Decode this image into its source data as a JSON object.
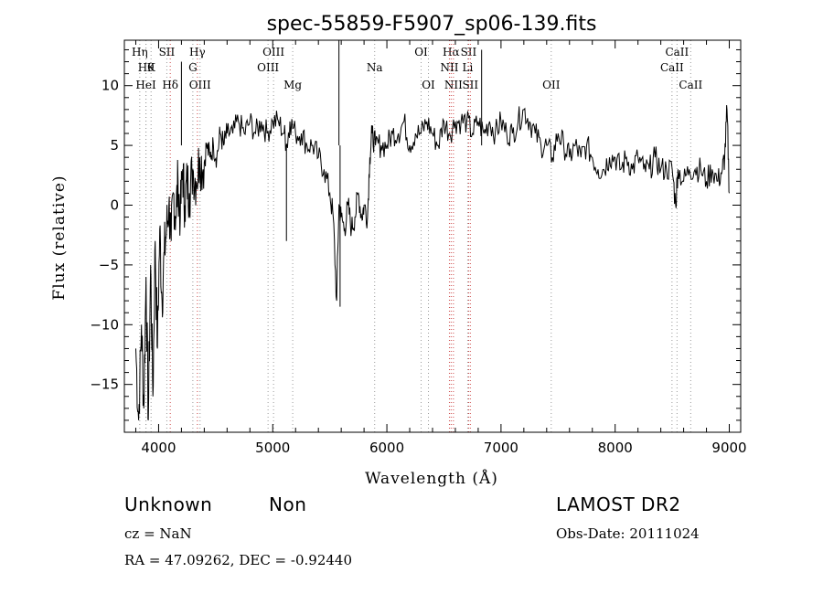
{
  "chart_data": {
    "type": "line",
    "title": "spec-55859-F5907_sp06-139.fits",
    "xlabel": "Wavelength (Å)",
    "ylabel": "Flux (relative)",
    "xlim": [
      3700,
      9100
    ],
    "ylim": [
      -19,
      13.8
    ],
    "x_ticks": [
      4000,
      5000,
      6000,
      7000,
      8000,
      9000
    ],
    "y_ticks": [
      -15,
      -10,
      -5,
      0,
      5,
      10
    ],
    "grid": false,
    "legend": "none",
    "series": [
      {
        "x": [
          3800,
          3825,
          3850,
          3870,
          3890,
          3910,
          3930,
          3950,
          3970,
          3990,
          4010,
          4030,
          4050,
          4070,
          4090,
          4110,
          4130,
          4150,
          4170,
          4190,
          4210,
          4230,
          4250,
          4270,
          4300,
          4330,
          4360,
          4390,
          4420,
          4450,
          4480,
          4510,
          4540,
          4570,
          4600,
          4650,
          4700,
          4750,
          4800,
          4850,
          4900,
          4950,
          5000,
          5050,
          5100,
          5125,
          5150,
          5200,
          5250,
          5300,
          5350,
          5400,
          5450,
          5500,
          5530,
          5560,
          5580,
          5600,
          5630,
          5660,
          5690,
          5720,
          5750,
          5780,
          5800,
          5830,
          5850,
          5870,
          5900,
          5950,
          6000,
          6050,
          6100,
          6150,
          6200,
          6250,
          6300,
          6350,
          6400,
          6450,
          6500,
          6550,
          6600,
          6650,
          6700,
          6750,
          6800,
          6850,
          6900,
          6950,
          7000,
          7050,
          7100,
          7150,
          7200,
          7250,
          7300,
          7350,
          7400,
          7450,
          7500,
          7550,
          7600,
          7650,
          7700,
          7750,
          7800,
          7850,
          7900,
          7950,
          8000,
          8050,
          8100,
          8150,
          8200,
          8250,
          8300,
          8350,
          8400,
          8450,
          8500,
          8530,
          8550,
          8600,
          8650,
          8700,
          8750,
          8800,
          8850,
          8900,
          8940,
          8960,
          8980,
          9000
        ],
        "y": [
          -12,
          -18,
          -10,
          -17,
          -6,
          -18,
          -5,
          -16,
          -3,
          -12,
          -2,
          -8,
          -4,
          -2,
          0,
          -3,
          1,
          -1,
          2,
          -1,
          3,
          0,
          2,
          1,
          3,
          2,
          4,
          3,
          5,
          4,
          5,
          4,
          6,
          5,
          6,
          6,
          7,
          6,
          7,
          6,
          7,
          6,
          7,
          7,
          6,
          5,
          7,
          6,
          6,
          5,
          5,
          4,
          3,
          1,
          -1,
          -8,
          0,
          -1,
          -2,
          0,
          -2,
          -1,
          1,
          -1,
          0,
          -1,
          4,
          6,
          5,
          5,
          5,
          6,
          6,
          7,
          5,
          6,
          6,
          7,
          6,
          5,
          7,
          6,
          7,
          7,
          7,
          6,
          7,
          6,
          7,
          6,
          7,
          6,
          6,
          7,
          8,
          7,
          6,
          5,
          5,
          4,
          6,
          5,
          4,
          5,
          4,
          5,
          4,
          3,
          3,
          4,
          4,
          3,
          4,
          3,
          4,
          3,
          3,
          4,
          3,
          3,
          3,
          0,
          3,
          2,
          3,
          3,
          3,
          2,
          3,
          2,
          3,
          4,
          8,
          1
        ],
        "spikes": [
          {
            "x": 4200,
            "y": 12
          },
          {
            "x": 5120,
            "y": -3
          },
          {
            "x": 5580,
            "y": 14
          },
          {
            "x": 5590,
            "y": -8.5
          },
          {
            "x": 6830,
            "y": 13
          }
        ]
      }
    ],
    "line_markers": [
      {
        "x": 3835,
        "label": "Hη",
        "row": 0,
        "color": "#999999"
      },
      {
        "x": 3889,
        "label": "Hθ",
        "row": 1,
        "color": "#999999"
      },
      {
        "x": 3934,
        "label": "K",
        "row": 1,
        "color": "#999999"
      },
      {
        "x": 3889,
        "label": "HeI",
        "row": 2,
        "color": "#999999"
      },
      {
        "x": 4072,
        "label": "SII",
        "row": 0,
        "color": "#999999"
      },
      {
        "x": 4102,
        "label": "Hδ",
        "row": 2,
        "color": "#cc4444"
      },
      {
        "x": 4340,
        "label": "Hγ",
        "row": 0,
        "color": "#cc4444"
      },
      {
        "x": 4300,
        "label": "G",
        "row": 1,
        "color": "#999999"
      },
      {
        "x": 4363,
        "label": "OIII",
        "row": 2,
        "color": "#999999"
      },
      {
        "x": 5007,
        "label": "OIII",
        "row": 0,
        "color": "#999999"
      },
      {
        "x": 4959,
        "label": "OIII",
        "row": 1,
        "color": "#999999"
      },
      {
        "x": 5175,
        "label": "Mg",
        "row": 2,
        "color": "#999999"
      },
      {
        "x": 5893,
        "label": "Na",
        "row": 1,
        "color": "#999999"
      },
      {
        "x": 6300,
        "label": "OI",
        "row": 0,
        "color": "#999999"
      },
      {
        "x": 6364,
        "label": "OI",
        "row": 2,
        "color": "#999999"
      },
      {
        "x": 6563,
        "label": "Hα",
        "row": 0,
        "color": "#cc4444"
      },
      {
        "x": 6716,
        "label": "SII",
        "row": 0,
        "color": "#cc4444"
      },
      {
        "x": 6548,
        "label": "NII",
        "row": 1,
        "color": "#cc4444"
      },
      {
        "x": 6708,
        "label": "Li",
        "row": 1,
        "color": "#999999"
      },
      {
        "x": 6583,
        "label": "NII",
        "row": 2,
        "color": "#cc4444"
      },
      {
        "x": 6731,
        "label": "SII",
        "row": 2,
        "color": "#cc4444"
      },
      {
        "x": 7440,
        "label": "OII",
        "row": 2,
        "color": "#999999"
      },
      {
        "x": 8542,
        "label": "CaII",
        "row": 0,
        "color": "#999999"
      },
      {
        "x": 8498,
        "label": "CaII",
        "row": 1,
        "color": "#999999"
      },
      {
        "x": 8662,
        "label": "CaII",
        "row": 2,
        "color": "#999999"
      }
    ]
  },
  "info": {
    "class": "Unknown",
    "subclass": "Non",
    "survey": "LAMOST DR2",
    "cz": "cz = NaN",
    "obs_date": "Obs-Date: 20111024",
    "coords": "RA =  47.09262, DEC =  -0.92440"
  }
}
